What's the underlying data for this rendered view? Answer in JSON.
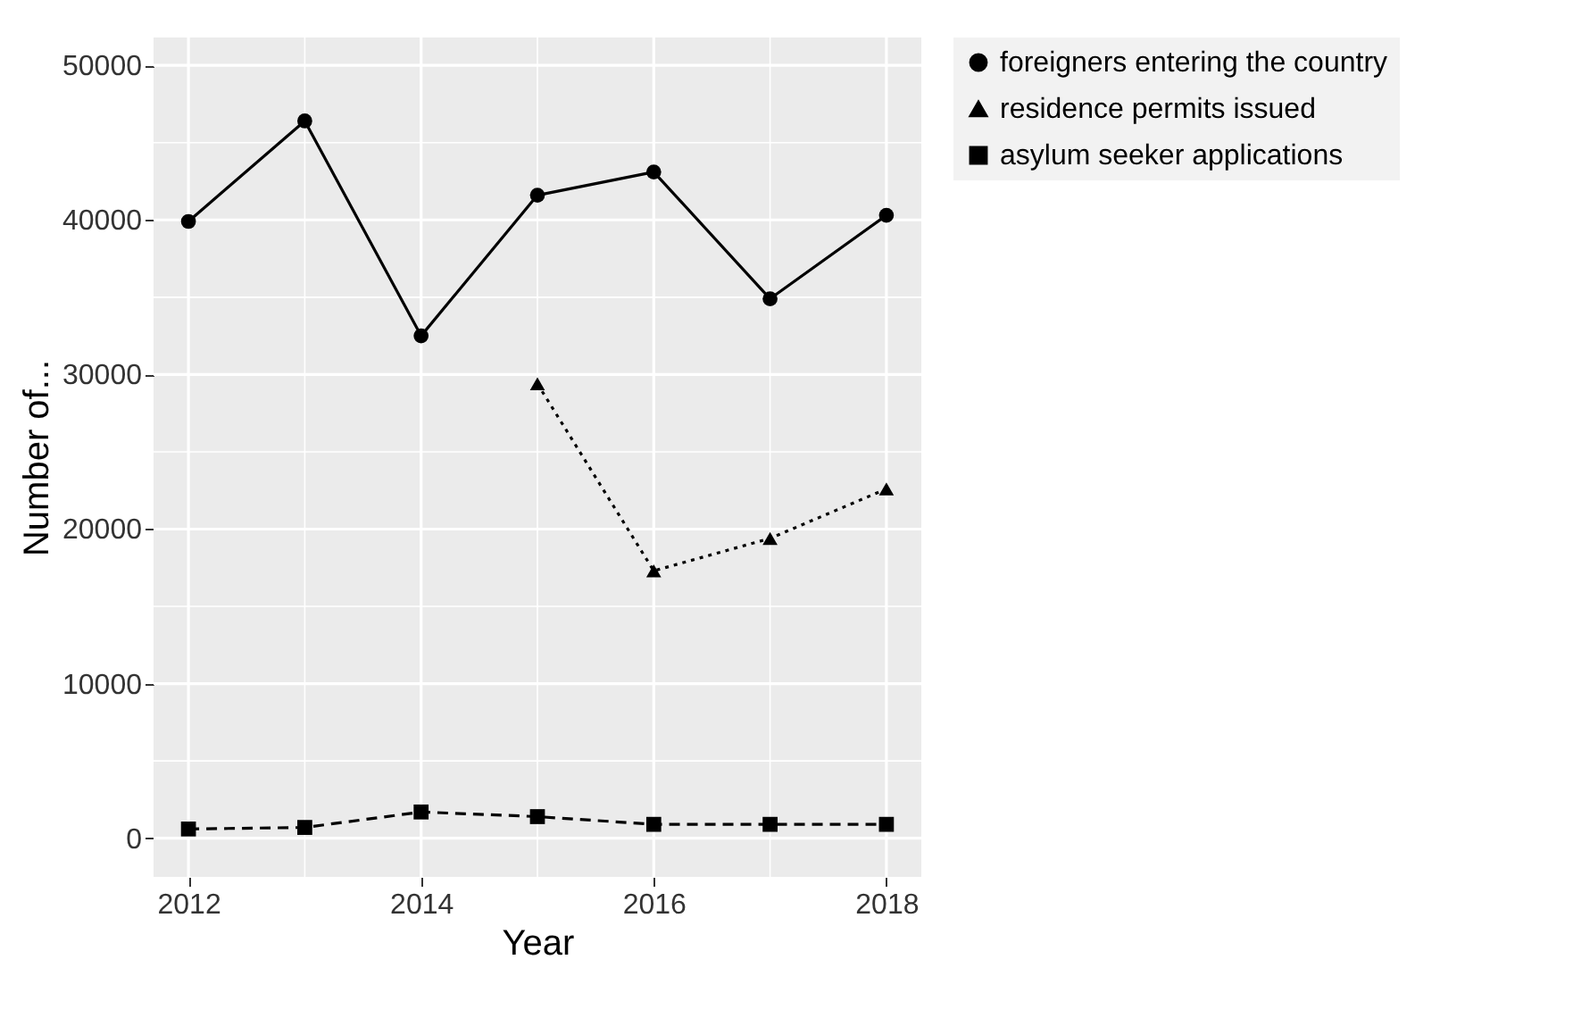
{
  "chart_data": {
    "type": "line",
    "xlabel": "Year",
    "ylabel": "Number of...",
    "x": [
      2012,
      2013,
      2014,
      2015,
      2016,
      2017,
      2018
    ],
    "xlim": [
      2011.7,
      2018.3
    ],
    "xticks": [
      2012,
      2014,
      2016,
      2018
    ],
    "ylim": [
      -2500,
      51800
    ],
    "yticks": [
      0,
      10000,
      20000,
      30000,
      40000,
      50000
    ],
    "grid": true,
    "legend": "right",
    "series": [
      {
        "name": "foreigners entering the country",
        "color": "#000000",
        "marker": "circle",
        "line_style": "solid",
        "values": [
          39900,
          46400,
          32500,
          41600,
          43100,
          34900,
          40300
        ]
      },
      {
        "name": "residence permits issued",
        "color": "#000000",
        "marker": "triangle",
        "line_style": "dotted",
        "values": [
          null,
          null,
          null,
          29400,
          17300,
          19400,
          22600
        ]
      },
      {
        "name": "asylum seeker applications",
        "color": "#000000",
        "marker": "square",
        "line_style": "dashed",
        "values": [
          600,
          700,
          1700,
          1400,
          900,
          900,
          900
        ]
      }
    ]
  }
}
